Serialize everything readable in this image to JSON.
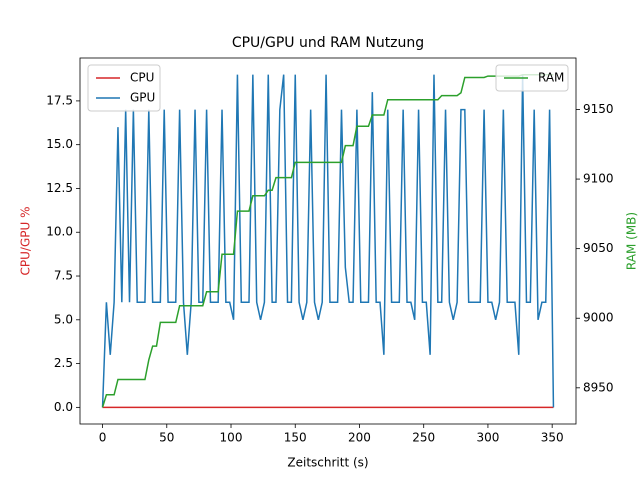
{
  "chart_data": {
    "type": "line",
    "title": "CPU/GPU und RAM Nutzung",
    "x_label": "Zeitschritt (s)",
    "y_label": "CPU/GPU %",
    "y2_label": "RAM (MB)",
    "x": [
      0,
      3,
      6,
      9,
      12,
      15,
      18,
      21,
      24,
      27,
      30,
      33,
      36,
      39,
      42,
      45,
      48,
      51,
      54,
      57,
      60,
      63,
      66,
      69,
      72,
      75,
      78,
      81,
      84,
      87,
      90,
      93,
      96,
      99,
      102,
      105,
      108,
      111,
      114,
      117,
      120,
      123,
      126,
      129,
      132,
      135,
      138,
      141,
      144,
      147,
      150,
      153,
      156,
      159,
      162,
      165,
      168,
      171,
      174,
      177,
      180,
      183,
      186,
      189,
      192,
      195,
      198,
      201,
      204,
      207,
      210,
      213,
      216,
      219,
      222,
      225,
      228,
      231,
      234,
      237,
      240,
      243,
      246,
      249,
      252,
      255,
      258,
      261,
      264,
      267,
      270,
      273,
      276,
      279,
      282,
      285,
      288,
      291,
      294,
      297,
      300,
      303,
      306,
      309,
      312,
      315,
      318,
      321,
      324,
      327,
      330,
      333,
      336,
      339,
      342,
      345,
      348,
      351
    ],
    "series": [
      {
        "name": "CPU",
        "color": "#d62728",
        "axis": "y",
        "values": [
          0,
          0,
          0,
          0,
          0,
          0,
          0,
          0,
          0,
          0,
          0,
          0,
          0,
          0,
          0,
          0,
          0,
          0,
          0,
          0,
          0,
          0,
          0,
          0,
          0,
          0,
          0,
          0,
          0,
          0,
          0,
          0,
          0,
          0,
          0,
          0,
          0,
          0,
          0,
          0,
          0,
          0,
          0,
          0,
          0,
          0,
          0,
          0,
          0,
          0,
          0,
          0,
          0,
          0,
          0,
          0,
          0,
          0,
          0,
          0,
          0,
          0,
          0,
          0,
          0,
          0,
          0,
          0,
          0,
          0,
          0,
          0,
          0,
          0,
          0,
          0,
          0,
          0,
          0,
          0,
          0,
          0,
          0,
          0,
          0,
          0,
          0,
          0,
          0,
          0,
          0,
          0,
          0,
          0,
          0,
          0,
          0,
          0,
          0,
          0,
          0,
          0,
          0,
          0,
          0,
          0,
          0,
          0,
          0,
          0,
          0,
          0,
          0,
          0,
          0,
          0,
          0,
          0
        ]
      },
      {
        "name": "GPU",
        "color": "#1f77b4",
        "axis": "y",
        "values": [
          0,
          6,
          3,
          6,
          16,
          6,
          17,
          6,
          17,
          6,
          6,
          6,
          17,
          6,
          6,
          6,
          17,
          6,
          6,
          6,
          17,
          6,
          3,
          6,
          17,
          6,
          6,
          17,
          6,
          6,
          6,
          17,
          6,
          6,
          5,
          19,
          6,
          6,
          6,
          19,
          6,
          5,
          6,
          19,
          6,
          6,
          17,
          19,
          6,
          6,
          19,
          6,
          5,
          6,
          17,
          6,
          5,
          6,
          19,
          6,
          6,
          6,
          17,
          8,
          6,
          6,
          17,
          6,
          6,
          6,
          18,
          6,
          6,
          3,
          17,
          6,
          6,
          6,
          17,
          6,
          6,
          5,
          17,
          6,
          6,
          3,
          19,
          6,
          6,
          17,
          6,
          5,
          6,
          17,
          17,
          6,
          6,
          6,
          6,
          17,
          6,
          6,
          5,
          6,
          17,
          6,
          6,
          6,
          3,
          19,
          6,
          6,
          17,
          5,
          6,
          6,
          17,
          0
        ]
      },
      {
        "name": "RAM",
        "color": "#2ca02c",
        "axis": "y2",
        "values": [
          8936,
          8945,
          8945,
          8945,
          8956,
          8956,
          8956,
          8956,
          8956,
          8956,
          8956,
          8956,
          8970,
          8980,
          8980,
          8997,
          8997,
          8997,
          8997,
          8997,
          9009,
          9009,
          9009,
          9009,
          9009,
          9009,
          9009,
          9019,
          9019,
          9019,
          9019,
          9046,
          9046,
          9046,
          9046,
          9077,
          9077,
          9077,
          9077,
          9088,
          9088,
          9088,
          9088,
          9092,
          9092,
          9101,
          9101,
          9101,
          9101,
          9101,
          9112,
          9112,
          9112,
          9112,
          9112,
          9112,
          9112,
          9112,
          9112,
          9112,
          9112,
          9112,
          9112,
          9124,
          9124,
          9124,
          9138,
          9138,
          9138,
          9138,
          9146,
          9146,
          9146,
          9146,
          9157,
          9157,
          9157,
          9157,
          9157,
          9157,
          9157,
          9157,
          9157,
          9157,
          9157,
          9157,
          9157,
          9157,
          9160,
          9160,
          9160,
          9160,
          9160,
          9162,
          9173,
          9173,
          9173,
          9173,
          9173,
          9173,
          9174,
          9174,
          9174,
          9174,
          9174,
          9174,
          9174,
          9174,
          9174,
          9175,
          9175,
          9175,
          9175,
          9175,
          9175,
          9175,
          9175,
          9175
        ]
      }
    ],
    "xlim": [
      -17.55,
      368.55
    ],
    "xticks": [
      0,
      50,
      100,
      150,
      200,
      250,
      300,
      350
    ],
    "ylim": [
      -0.95,
      19.95
    ],
    "yticks": [
      {
        "value": 0,
        "label": "0.0"
      },
      {
        "value": 2.5,
        "label": "2.5"
      },
      {
        "value": 5,
        "label": "5.0"
      },
      {
        "value": 7.5,
        "label": "7.5"
      },
      {
        "value": 10,
        "label": "10.0"
      },
      {
        "value": 12.5,
        "label": "12.5"
      },
      {
        "value": 15,
        "label": "15.0"
      },
      {
        "value": 17.5,
        "label": "17.5"
      }
    ],
    "y2lim": [
      8924,
      9187
    ],
    "y2ticks": [
      8950,
      9000,
      9050,
      9100,
      9150
    ],
    "y_label_color": "#d62728",
    "y2_label_color": "#2ca02c",
    "legend": "upper left",
    "legend2": "upper right"
  }
}
